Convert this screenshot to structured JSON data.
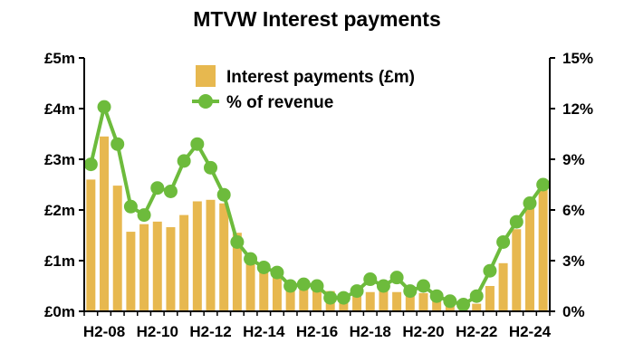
{
  "chart_data": {
    "type": "bar+line",
    "title": "MTVW Interest payments",
    "categories": [
      "H1-08",
      "H2-08",
      "H1-09",
      "H2-09",
      "H1-10",
      "H2-10",
      "H1-11",
      "H2-11",
      "H1-12",
      "H2-12",
      "H1-13",
      "H2-13",
      "H1-14",
      "H2-14",
      "H1-15",
      "H2-15",
      "H1-16",
      "H2-16",
      "H1-17",
      "H2-17",
      "H1-18",
      "H2-18",
      "H1-19",
      "H2-19",
      "H1-20",
      "H2-20",
      "H1-21",
      "H2-21",
      "H1-22",
      "H2-22",
      "H1-23",
      "H2-23",
      "H1-24",
      "H2-24",
      "H1-25"
    ],
    "x_tick_labels": [
      "H2-08",
      "H2-10",
      "H2-12",
      "H2-14",
      "H2-16",
      "H2-18",
      "H2-20",
      "H2-22",
      "H2-24"
    ],
    "series": [
      {
        "name": "Interest payments (£m)",
        "type": "bar",
        "axis": "left",
        "color": "#e7b84f",
        "values": [
          2.6,
          3.45,
          2.48,
          1.57,
          1.72,
          1.77,
          1.66,
          1.9,
          2.17,
          2.2,
          2.13,
          1.55,
          1.1,
          0.85,
          0.72,
          0.6,
          0.5,
          0.48,
          0.4,
          0.35,
          0.32,
          0.38,
          0.4,
          0.38,
          0.38,
          0.36,
          0.3,
          0.25,
          0.22,
          0.15,
          0.5,
          0.95,
          1.62,
          2.1,
          2.4
        ]
      },
      {
        "name": "% of revenue",
        "type": "line",
        "axis": "right",
        "color": "#6dbb3c",
        "values": [
          8.7,
          12.1,
          9.9,
          6.2,
          5.7,
          7.3,
          7.1,
          8.9,
          9.9,
          8.5,
          6.9,
          4.1,
          3.1,
          2.6,
          2.3,
          1.5,
          1.6,
          1.5,
          0.8,
          0.8,
          1.2,
          1.9,
          1.5,
          2.0,
          1.2,
          1.5,
          0.9,
          0.6,
          0.4,
          0.9,
          2.4,
          4.1,
          5.3,
          6.4,
          7.5
        ]
      }
    ],
    "y_left": {
      "ylim": [
        0,
        5
      ],
      "ticks": [
        "£0m",
        "£1m",
        "£2m",
        "£3m",
        "£4m",
        "£5m"
      ]
    },
    "y_right": {
      "ylim": [
        0,
        15
      ],
      "ticks": [
        "0%",
        "3%",
        "6%",
        "9%",
        "12%",
        "15%"
      ]
    },
    "legend": {
      "placement": "top-center"
    },
    "grid": false
  }
}
